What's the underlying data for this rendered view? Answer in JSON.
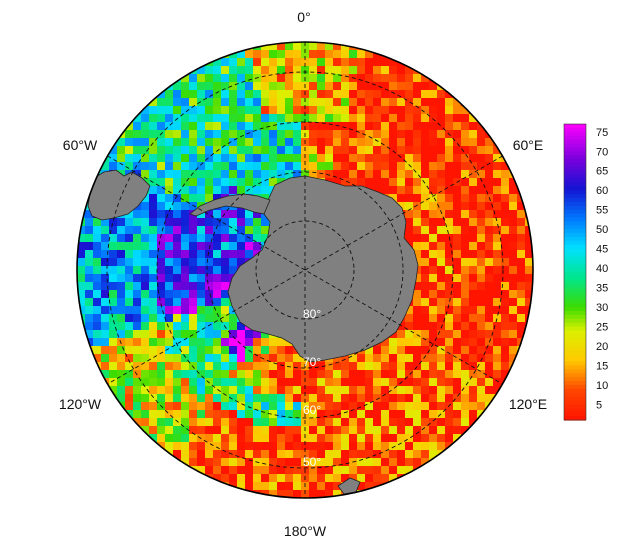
{
  "map": {
    "projection": "south-polar-stereographic",
    "longitude_labels": {
      "top": "0°",
      "upper_left": "60°W",
      "upper_right": "60°E",
      "lower_left": "120°W",
      "lower_right": "120°E",
      "bottom": "180°W"
    },
    "latitude_labels": [
      "80°",
      "70°",
      "60°",
      "50°"
    ],
    "land_color": "#808080",
    "background": "#ffffff",
    "gridline_style": "dashed black",
    "pattern_description_regions": [
      {
        "sector": "0° to 90°E",
        "typical_value": 5
      },
      {
        "sector": "90°E to 180°",
        "typical_value": 10
      },
      {
        "sector": "Weddell Sea",
        "typical_value": 52
      },
      {
        "sector": "South Atlantic / Drake Passage",
        "typical_value": 45
      },
      {
        "sector": "Amundsen Sea coast",
        "typical_value": 72
      }
    ]
  },
  "colorbar": {
    "ticks": [
      "75",
      "70",
      "65",
      "60",
      "55",
      "50",
      "45",
      "40",
      "35",
      "30",
      "25",
      "20",
      "15",
      "10",
      "5"
    ],
    "min": 1,
    "max": 77,
    "colormap": "jet-like (red low, magenta high)"
  }
}
